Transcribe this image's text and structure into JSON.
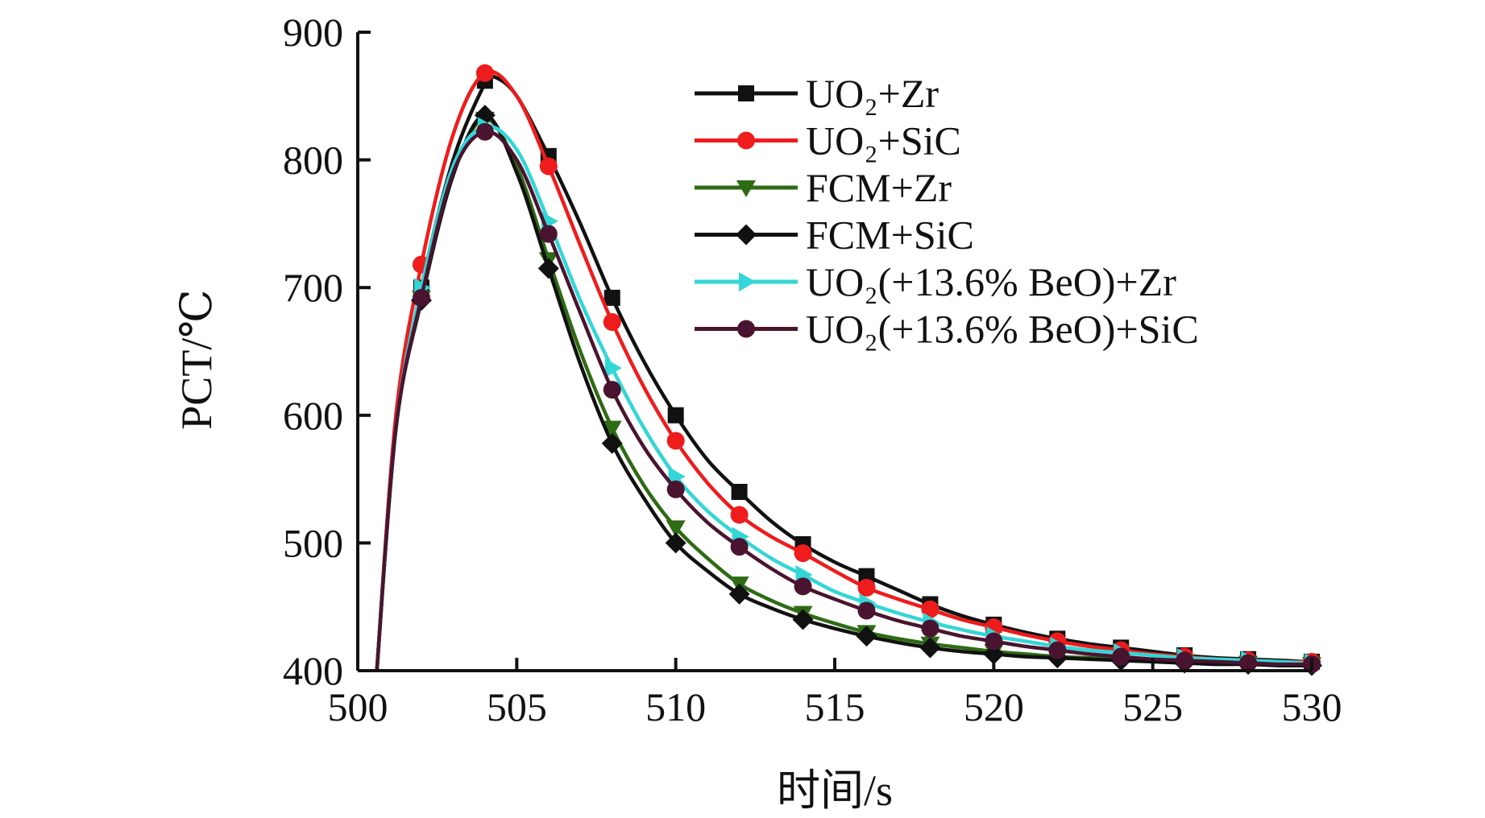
{
  "chart_data": {
    "type": "line",
    "xlabel": "时间/s",
    "ylabel": "PCT/℃",
    "xlim": [
      500,
      530
    ],
    "ylim": [
      400,
      900
    ],
    "xticks": [
      "500",
      "505",
      "510",
      "515",
      "520",
      "525",
      "530"
    ],
    "yticks": [
      "400",
      "500",
      "600",
      "700",
      "800",
      "900"
    ],
    "legend_position": "top-right",
    "series": [
      {
        "name": "UO₂+Zr",
        "color": "#111111",
        "marker": "square",
        "x": [
          500.6,
          501.2,
          502,
          503,
          504,
          504.3,
          505,
          506,
          507,
          508,
          509,
          510,
          511,
          512,
          513,
          514,
          515,
          516,
          517,
          518,
          519,
          520,
          521,
          522,
          523,
          524,
          525,
          526,
          527,
          528,
          529,
          529.8
        ],
        "y": [
          400,
          590,
          700,
          800,
          860,
          865,
          850,
          803,
          750,
          692,
          642,
          600,
          565,
          540,
          517,
          499,
          485,
          474,
          463,
          452,
          443,
          436,
          430,
          425,
          421,
          418,
          415,
          412,
          410,
          409,
          408,
          407
        ],
        "marker_x": [
          502,
          504,
          506,
          508,
          510,
          512,
          514,
          516,
          518,
          520,
          522,
          524,
          526,
          528,
          530
        ],
        "marker_y": [
          700,
          862,
          803,
          692,
          600,
          540,
          499,
          474,
          452,
          436,
          425,
          418,
          412,
          409,
          407
        ]
      },
      {
        "name": "UO₂+SiC",
        "color": "#ee1c1c",
        "marker": "circle",
        "x": [
          500.6,
          501.2,
          502,
          503,
          504,
          505,
          506,
          507,
          508,
          509,
          510,
          511,
          512,
          513,
          514,
          515,
          516,
          517,
          518,
          519,
          520,
          521,
          522,
          523,
          524,
          525,
          526,
          527,
          528,
          529,
          529.8
        ],
        "y": [
          400,
          600,
          718,
          820,
          868,
          850,
          795,
          733,
          673,
          622,
          580,
          547,
          522,
          505,
          492,
          478,
          465,
          456,
          448,
          440,
          434,
          428,
          423,
          419,
          416,
          413,
          411,
          409,
          408,
          407,
          407
        ],
        "marker_x": [
          502,
          504,
          506,
          508,
          510,
          512,
          514,
          516,
          518,
          520,
          522,
          524,
          526,
          528,
          530
        ],
        "marker_y": [
          718,
          868,
          795,
          673,
          580,
          522,
          492,
          465,
          448,
          434,
          423,
          416,
          411,
          408,
          407
        ]
      },
      {
        "name": "FCM+Zr",
        "color": "#2e6b14",
        "marker": "triangle-down",
        "x": [
          500.6,
          501.2,
          502,
          503,
          504,
          505,
          506,
          507,
          508,
          509,
          510,
          511,
          512,
          513,
          514,
          515,
          516,
          517,
          518,
          519,
          520,
          521,
          522,
          523,
          524,
          525,
          526,
          527,
          528,
          529,
          529.8
        ],
        "y": [
          400,
          590,
          692,
          790,
          832,
          795,
          722,
          650,
          590,
          545,
          512,
          488,
          468,
          455,
          445,
          437,
          430,
          425,
          421,
          418,
          415,
          413,
          411,
          410,
          409,
          408,
          407,
          406,
          406,
          405,
          405
        ],
        "marker_x": [
          502,
          504,
          506,
          508,
          510,
          512,
          514,
          516,
          518,
          520,
          522,
          524,
          526,
          528,
          530
        ],
        "marker_y": [
          692,
          832,
          722,
          590,
          512,
          468,
          445,
          430,
          421,
          415,
          411,
          409,
          407,
          406,
          405
        ]
      },
      {
        "name": "FCM+SiC",
        "color": "#111111",
        "marker": "diamond",
        "x": [
          500.6,
          501.2,
          502,
          503,
          504,
          505,
          506,
          507,
          508,
          509,
          510,
          511,
          512,
          513,
          514,
          515,
          516,
          517,
          518,
          519,
          520,
          521,
          522,
          523,
          524,
          525,
          526,
          527,
          528,
          529,
          529.8
        ],
        "y": [
          400,
          590,
          690,
          788,
          835,
          790,
          715,
          640,
          578,
          535,
          500,
          478,
          460,
          449,
          440,
          433,
          427,
          422,
          418,
          415,
          413,
          411,
          410,
          409,
          408,
          407,
          406,
          405,
          405,
          404,
          404
        ],
        "marker_x": [
          502,
          504,
          506,
          508,
          510,
          512,
          514,
          516,
          518,
          520,
          522,
          524,
          526,
          528,
          530
        ],
        "marker_y": [
          690,
          835,
          715,
          578,
          500,
          460,
          440,
          427,
          418,
          413,
          410,
          408,
          406,
          405,
          404
        ]
      },
      {
        "name": "UO₂(+13.6% BeO)+Zr",
        "color": "#33d6d6",
        "marker": "triangle-right",
        "x": [
          500.6,
          501.2,
          502,
          503,
          504,
          505,
          506,
          507,
          508,
          509,
          510,
          511,
          512,
          513,
          514,
          515,
          516,
          517,
          518,
          519,
          520,
          521,
          522,
          523,
          524,
          525,
          526,
          527,
          528,
          529,
          529.8
        ],
        "y": [
          400,
          590,
          700,
          795,
          826,
          808,
          752,
          690,
          637,
          590,
          552,
          525,
          505,
          488,
          475,
          462,
          453,
          445,
          438,
          432,
          427,
          423,
          419,
          416,
          414,
          412,
          410,
          409,
          408,
          407,
          406
        ],
        "marker_x": [
          502,
          504,
          506,
          508,
          510,
          512,
          514,
          516,
          518,
          520,
          522,
          524,
          526,
          528,
          530
        ],
        "marker_y": [
          700,
          826,
          752,
          637,
          552,
          505,
          475,
          453,
          438,
          427,
          419,
          414,
          410,
          408,
          406
        ]
      },
      {
        "name": "UO₂(+13.6% BeO)+SiC",
        "color": "#4a1430",
        "marker": "circle",
        "x": [
          500.6,
          501.2,
          502,
          503,
          504,
          505,
          506,
          507,
          508,
          509,
          510,
          511,
          512,
          513,
          514,
          515,
          516,
          517,
          518,
          519,
          520,
          521,
          522,
          523,
          524,
          525,
          526,
          527,
          528,
          529,
          529.8
        ],
        "y": [
          400,
          590,
          692,
          790,
          822,
          800,
          742,
          680,
          620,
          575,
          542,
          516,
          497,
          480,
          466,
          456,
          447,
          439,
          433,
          427,
          423,
          419,
          416,
          413,
          411,
          409,
          408,
          407,
          406,
          405,
          405
        ],
        "marker_x": [
          502,
          504,
          506,
          508,
          510,
          512,
          514,
          516,
          518,
          520,
          522,
          524,
          526,
          528,
          530
        ],
        "marker_y": [
          692,
          822,
          742,
          620,
          542,
          497,
          466,
          447,
          433,
          423,
          416,
          411,
          408,
          406,
          405
        ]
      }
    ]
  }
}
